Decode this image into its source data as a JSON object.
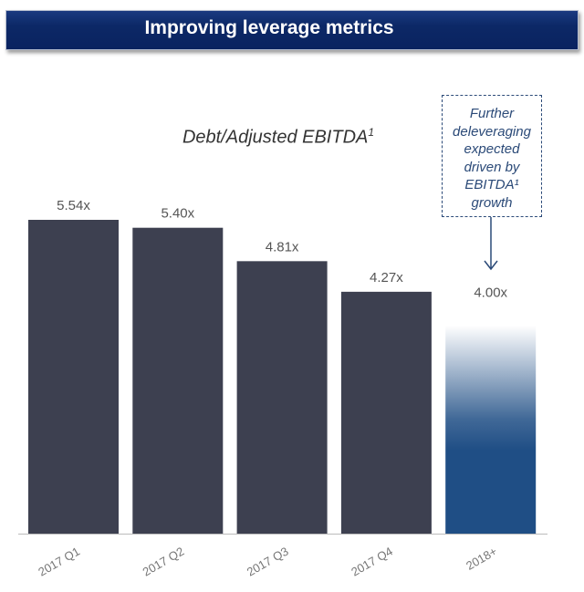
{
  "header": {
    "title": "Improving leverage metrics"
  },
  "chart_data": {
    "type": "bar",
    "title": "Debt/Adjusted EBITDA",
    "title_superscript": "1",
    "categories": [
      "2017 Q1",
      "2017 Q2",
      "2017 Q3",
      "2017 Q4",
      "2018+"
    ],
    "values": [
      5.54,
      5.4,
      4.81,
      4.27,
      4.0
    ],
    "data_labels": [
      "5.54x",
      "5.40x",
      "4.81x",
      "4.27x",
      "4.00x"
    ],
    "ylim": [
      0,
      5.6
    ],
    "xlabel": "",
    "ylabel": "",
    "grid": false,
    "colors": {
      "actual": "#3d4050",
      "projected": "#1f4e85"
    },
    "annotation": {
      "lines": [
        "Further",
        "deleveraging",
        "expected",
        "driven by",
        "EBITDA¹",
        "growth"
      ]
    }
  }
}
